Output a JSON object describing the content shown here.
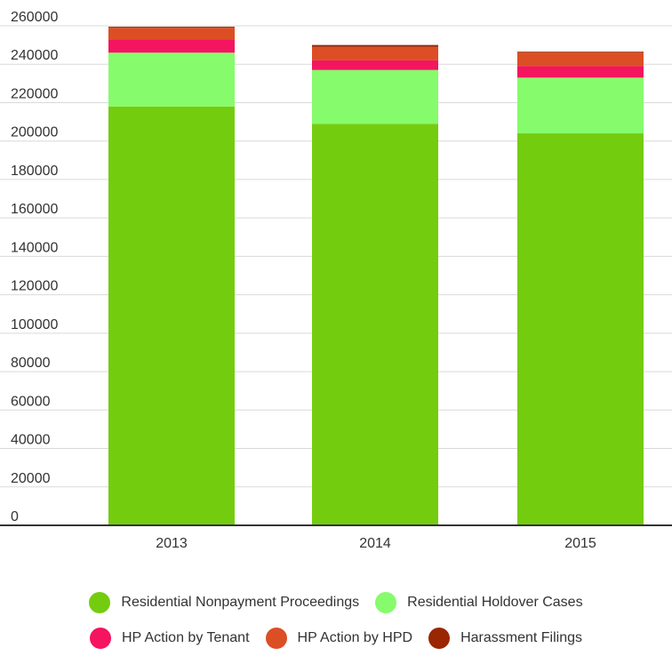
{
  "chart_data": {
    "type": "bar",
    "stacked": true,
    "categories": [
      "2013",
      "2014",
      "2015"
    ],
    "series": [
      {
        "name": "Residential Nonpayment Proceedings",
        "color": "#74cc0f",
        "values": [
          218000,
          209000,
          204000
        ]
      },
      {
        "name": "Residential Holdover Cases",
        "color": "#86fb6b",
        "values": [
          28000,
          28000,
          29000
        ]
      },
      {
        "name": "HP Action by Tenant",
        "color": "#f4145f",
        "values": [
          7000,
          5000,
          6000
        ]
      },
      {
        "name": "HP Action by HPD",
        "color": "#dc4e24",
        "values": [
          6000,
          7000,
          7000
        ]
      },
      {
        "name": "Harassment Filings",
        "color": "#9a2602",
        "values": [
          500,
          1000,
          500
        ]
      }
    ],
    "ylim": [
      0,
      260000
    ],
    "yticks": [
      0,
      20000,
      40000,
      60000,
      80000,
      100000,
      120000,
      140000,
      160000,
      180000,
      200000,
      220000,
      240000,
      260000
    ],
    "title": "",
    "xlabel": "",
    "ylabel": "",
    "grid": true,
    "legend_position": "bottom"
  }
}
